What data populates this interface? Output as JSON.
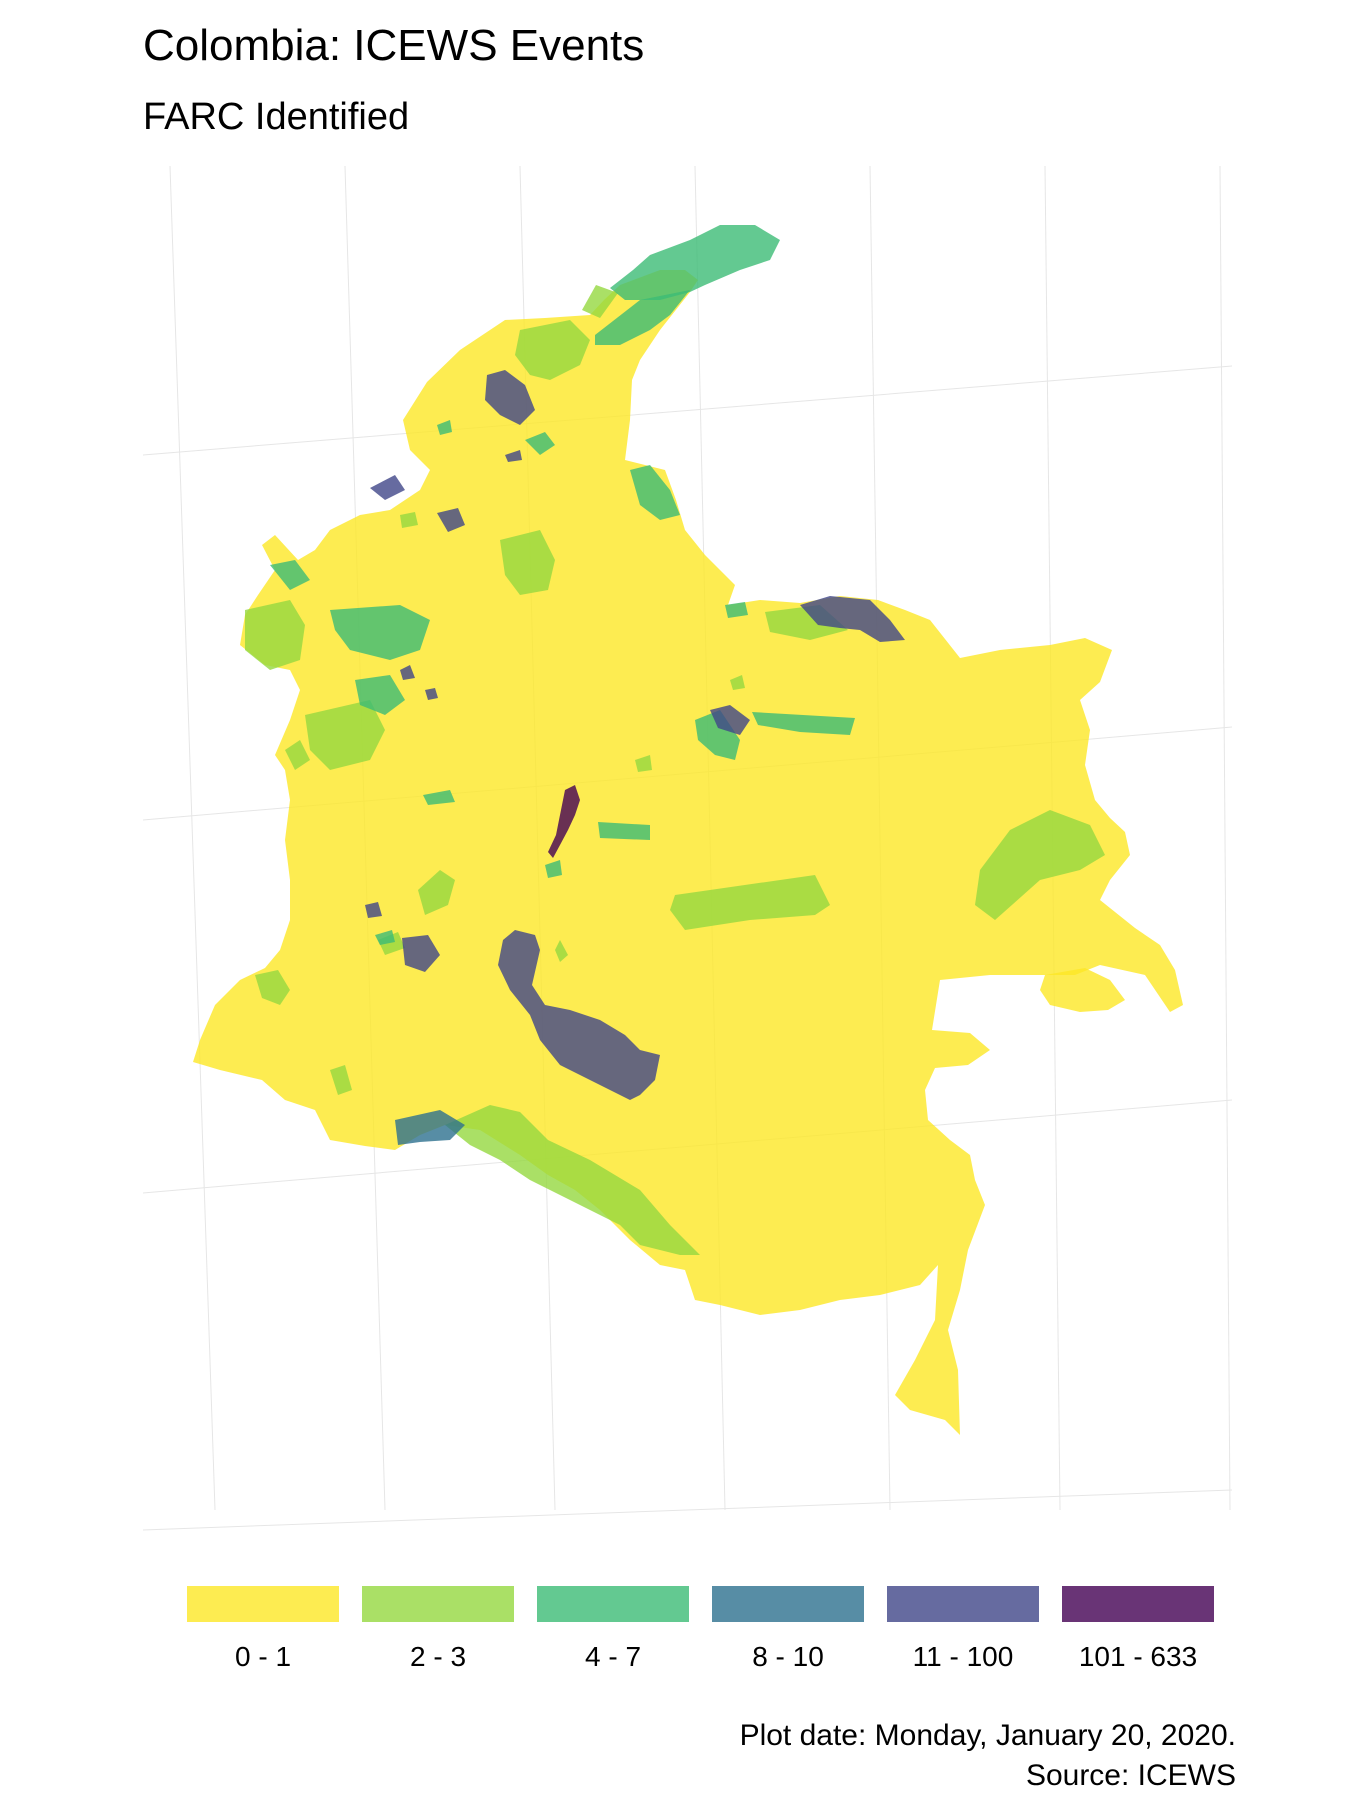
{
  "title": "Colombia: ICEWS Events",
  "subtitle": "FARC Identified",
  "legend": {
    "items": [
      {
        "label": "0 - 1",
        "color": "#FDE725"
      },
      {
        "label": "2 - 3",
        "color": "#95D840"
      },
      {
        "label": "4 - 7",
        "color": "#3CBB75"
      },
      {
        "label": "8 - 10",
        "color": "#2D708E"
      },
      {
        "label": "11 - 100",
        "color": "#404688"
      },
      {
        "label": "101 - 633",
        "color": "#440154"
      }
    ]
  },
  "caption": {
    "plot_date": "Plot date: Monday, January 20, 2020.",
    "source": "Source: ICEWS"
  },
  "map": {
    "country": "Colombia",
    "base_category": "0 - 1",
    "fill_opacity": 0.8
  }
}
